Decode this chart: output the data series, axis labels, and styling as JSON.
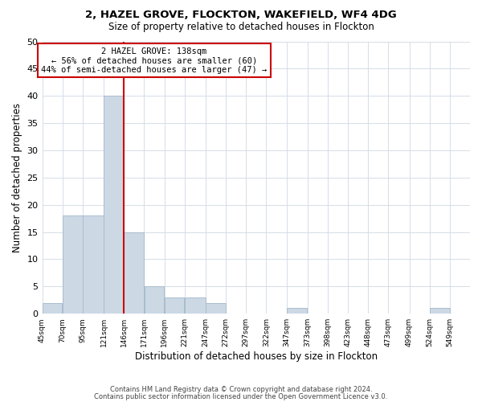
{
  "title": "2, HAZEL GROVE, FLOCKTON, WAKEFIELD, WF4 4DG",
  "subtitle": "Size of property relative to detached houses in Flockton",
  "xlabel": "Distribution of detached houses by size in Flockton",
  "ylabel": "Number of detached properties",
  "bin_labels": [
    "45sqm",
    "70sqm",
    "95sqm",
    "121sqm",
    "146sqm",
    "171sqm",
    "196sqm",
    "221sqm",
    "247sqm",
    "272sqm",
    "297sqm",
    "322sqm",
    "347sqm",
    "373sqm",
    "398sqm",
    "423sqm",
    "448sqm",
    "473sqm",
    "499sqm",
    "524sqm",
    "549sqm"
  ],
  "bar_values": [
    2,
    18,
    18,
    40,
    15,
    5,
    3,
    3,
    2,
    0,
    0,
    0,
    1,
    0,
    0,
    0,
    0,
    0,
    0,
    1,
    0
  ],
  "bar_color": "#ccd9e5",
  "bar_edge_color": "#aabccc",
  "vline_color": "#cc0000",
  "ylim": [
    0,
    50
  ],
  "annotation_title": "2 HAZEL GROVE: 138sqm",
  "annotation_line1": "← 56% of detached houses are smaller (60)",
  "annotation_line2": "44% of semi-detached houses are larger (47) →",
  "annotation_box_color": "#ffffff",
  "annotation_box_edge": "#cc0000",
  "footer_line1": "Contains HM Land Registry data © Crown copyright and database right 2024.",
  "footer_line2": "Contains public sector information licensed under the Open Government Licence v3.0.",
  "bin_width": 25,
  "bin_edges": [
    45,
    70,
    95,
    121,
    146,
    171,
    196,
    221,
    247,
    272,
    297,
    322,
    347,
    373,
    398,
    423,
    448,
    473,
    499,
    524,
    549,
    574
  ]
}
